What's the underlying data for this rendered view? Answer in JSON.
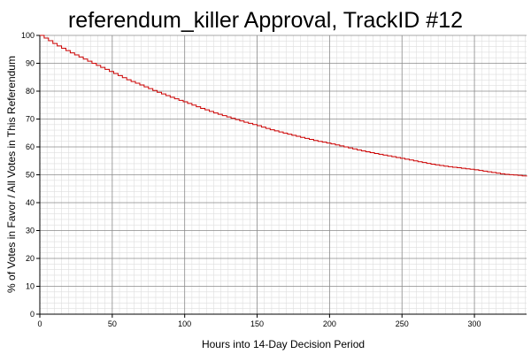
{
  "chart_data": {
    "type": "line",
    "title": "referendum_killer Approval, TrackID #12",
    "xlabel": "Hours into 14-Day Decision Period",
    "ylabel": "% of Votes in Favor / All Votes in This Referendum",
    "xlim": [
      0,
      336
    ],
    "ylim": [
      0,
      100
    ],
    "x_ticks": [
      0,
      50,
      100,
      150,
      200,
      250,
      300
    ],
    "y_ticks": [
      0,
      10,
      20,
      30,
      40,
      50,
      60,
      70,
      80,
      90,
      100
    ],
    "grid": true,
    "minor_grid": true,
    "step_line": true,
    "series": [
      {
        "color": "#cc0000",
        "x": [
          0,
          10,
          20,
          30,
          40,
          50,
          60,
          70,
          80,
          90,
          100,
          110,
          120,
          130,
          140,
          150,
          160,
          170,
          180,
          190,
          200,
          210,
          220,
          230,
          240,
          250,
          260,
          270,
          280,
          290,
          300,
          310,
          320,
          330,
          336
        ],
        "y": [
          100,
          96.8,
          94,
          91.5,
          89,
          86.6,
          84.1,
          82,
          79.8,
          77.8,
          76,
          74,
          72.2,
          70.6,
          69,
          67.6,
          66,
          64.7,
          63.4,
          62.2,
          61.2,
          60,
          58.8,
          57.7,
          56.8,
          55.8,
          54.8,
          53.8,
          53,
          52.4,
          51.8,
          51,
          50.2,
          49.8,
          49.4
        ]
      }
    ]
  }
}
